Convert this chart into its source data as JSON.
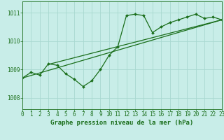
{
  "title": "Graphe pression niveau de la mer (hPa)",
  "bg_color": "#c8ede8",
  "grid_color": "#a8d8d0",
  "line_color": "#1a6e1a",
  "x_min": 0,
  "x_max": 23,
  "y_min": 1007.6,
  "y_max": 1011.4,
  "y_ticks": [
    1008,
    1009,
    1010,
    1011
  ],
  "x_ticks": [
    0,
    1,
    2,
    3,
    4,
    5,
    6,
    7,
    8,
    9,
    10,
    11,
    12,
    13,
    14,
    15,
    16,
    17,
    18,
    19,
    20,
    21,
    22,
    23
  ],
  "hours": [
    0,
    1,
    2,
    3,
    4,
    5,
    6,
    7,
    8,
    9,
    10,
    11,
    12,
    13,
    14,
    15,
    16,
    17,
    18,
    19,
    20,
    21,
    22,
    23
  ],
  "pressure_main": [
    1008.7,
    1008.9,
    1008.8,
    1009.2,
    1009.15,
    1008.85,
    1008.65,
    1008.4,
    1008.6,
    1009.0,
    1009.5,
    1009.8,
    1010.9,
    1010.95,
    1010.9,
    1010.3,
    1010.5,
    1010.65,
    1010.75,
    1010.85,
    1010.95,
    1010.8,
    1010.85,
    1010.75
  ],
  "trend_line1": [
    [
      0,
      1008.7
    ],
    [
      23,
      1010.75
    ]
  ],
  "trend_line2": [
    [
      3,
      1009.18
    ],
    [
      23,
      1010.75
    ]
  ],
  "font_size_label": 6.5,
  "font_size_tick": 5.5
}
